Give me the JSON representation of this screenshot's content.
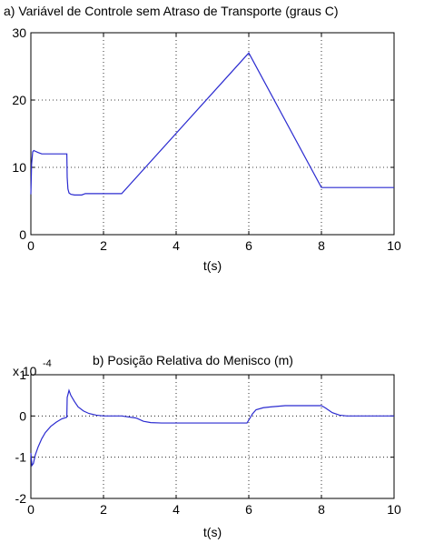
{
  "chart_data": [
    {
      "type": "line",
      "title": "a) Variável de Controle sem Atraso de Transporte (graus C)",
      "xlabel": "t(s)",
      "ylabel": "",
      "xlim": [
        0,
        10
      ],
      "ylim": [
        0,
        30
      ],
      "xticks": [
        0,
        2,
        4,
        6,
        8,
        10
      ],
      "yticks": [
        0,
        10,
        20,
        30
      ],
      "grid": true,
      "color": "#2b2bd0",
      "series": [
        {
          "x": [
            0,
            0.02,
            0.05,
            0.08,
            0.12,
            0.2,
            0.3,
            0.5,
            0.8,
            0.99,
            1.0,
            1.02,
            1.05,
            1.1,
            1.2,
            1.4,
            1.5,
            2.0,
            2.5,
            6.0,
            8.0,
            10.0
          ],
          "y": [
            6,
            10.5,
            12.3,
            12.5,
            12.4,
            12.2,
            12.0,
            12.0,
            12.0,
            12.0,
            8.5,
            6.8,
            6.2,
            6.0,
            5.9,
            5.9,
            6.1,
            6.1,
            6.1,
            27.0,
            7.0,
            7.0
          ]
        }
      ]
    },
    {
      "type": "line",
      "title": "b) Posição Relativa do Menisco (m)",
      "scale_label": "x 10",
      "scale_exponent": "-4",
      "xlabel": "t(s)",
      "ylabel": "",
      "xlim": [
        0,
        10
      ],
      "ylim": [
        -2,
        1
      ],
      "xticks": [
        0,
        2,
        4,
        6,
        8,
        10
      ],
      "yticks": [
        -2,
        -1,
        0,
        1
      ],
      "grid": true,
      "color": "#2b2bd0",
      "series": [
        {
          "x": [
            0,
            0.03,
            0.07,
            0.12,
            0.2,
            0.3,
            0.4,
            0.55,
            0.7,
            0.85,
            0.99,
            1.0,
            1.05,
            1.1,
            1.2,
            1.3,
            1.45,
            1.6,
            1.8,
            2.0,
            2.5,
            2.9,
            3.1,
            3.3,
            3.6,
            4.0,
            4.5,
            5.0,
            5.5,
            5.95,
            6.0,
            6.1,
            6.2,
            6.4,
            6.6,
            7.0,
            7.5,
            8.0,
            8.1,
            8.3,
            8.5,
            8.7,
            9.0,
            10.0
          ],
          "y": [
            -0.9,
            -1.2,
            -1.15,
            -0.95,
            -0.75,
            -0.55,
            -0.4,
            -0.25,
            -0.15,
            -0.07,
            -0.03,
            0.45,
            0.62,
            0.5,
            0.35,
            0.22,
            0.12,
            0.06,
            0.02,
            0.0,
            0.0,
            -0.05,
            -0.13,
            -0.16,
            -0.17,
            -0.17,
            -0.17,
            -0.17,
            -0.17,
            -0.17,
            -0.1,
            0.05,
            0.15,
            0.2,
            0.22,
            0.25,
            0.25,
            0.25,
            0.2,
            0.08,
            0.02,
            0.0,
            0.0,
            0.0
          ]
        }
      ]
    }
  ]
}
